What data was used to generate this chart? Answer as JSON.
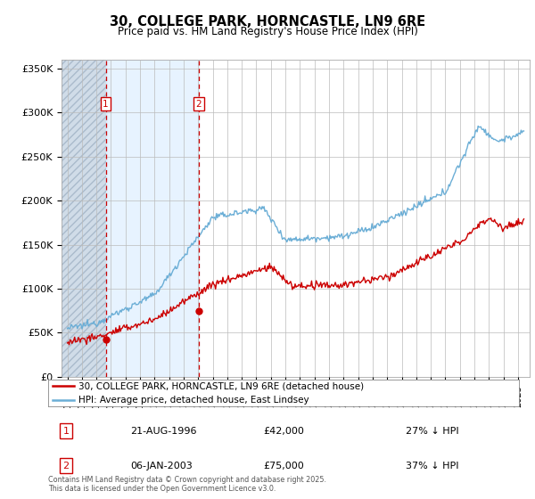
{
  "title": "30, COLLEGE PARK, HORNCASTLE, LN9 6RE",
  "subtitle": "Price paid vs. HM Land Registry's House Price Index (HPI)",
  "ylim": [
    0,
    360000
  ],
  "yticks": [
    0,
    50000,
    100000,
    150000,
    200000,
    250000,
    300000,
    350000
  ],
  "ytick_labels": [
    "£0",
    "£50K",
    "£100K",
    "£150K",
    "£200K",
    "£250K",
    "£300K",
    "£350K"
  ],
  "hpi_color": "#6baed6",
  "price_color": "#cc0000",
  "sale1_date": 1996.64,
  "sale1_price": 42000,
  "sale1_label": "1",
  "sale2_date": 2003.02,
  "sale2_price": 75000,
  "sale2_label": "2",
  "shade_color_hatch": "#d0dce8",
  "shade_color_light": "#ddeeff",
  "vline_color": "#cc0000",
  "legend_line1": "30, COLLEGE PARK, HORNCASTLE, LN9 6RE (detached house)",
  "legend_line2": "HPI: Average price, detached house, East Lindsey",
  "annot1_date": "21-AUG-1996",
  "annot1_price": "£42,000",
  "annot1_hpi": "27% ↓ HPI",
  "annot2_date": "06-JAN-2003",
  "annot2_price": "£75,000",
  "annot2_hpi": "37% ↓ HPI",
  "footer": "Contains HM Land Registry data © Crown copyright and database right 2025.\nThis data is licensed under the Open Government Licence v3.0.",
  "xlim_start": 1993.6,
  "xlim_end": 2025.8
}
